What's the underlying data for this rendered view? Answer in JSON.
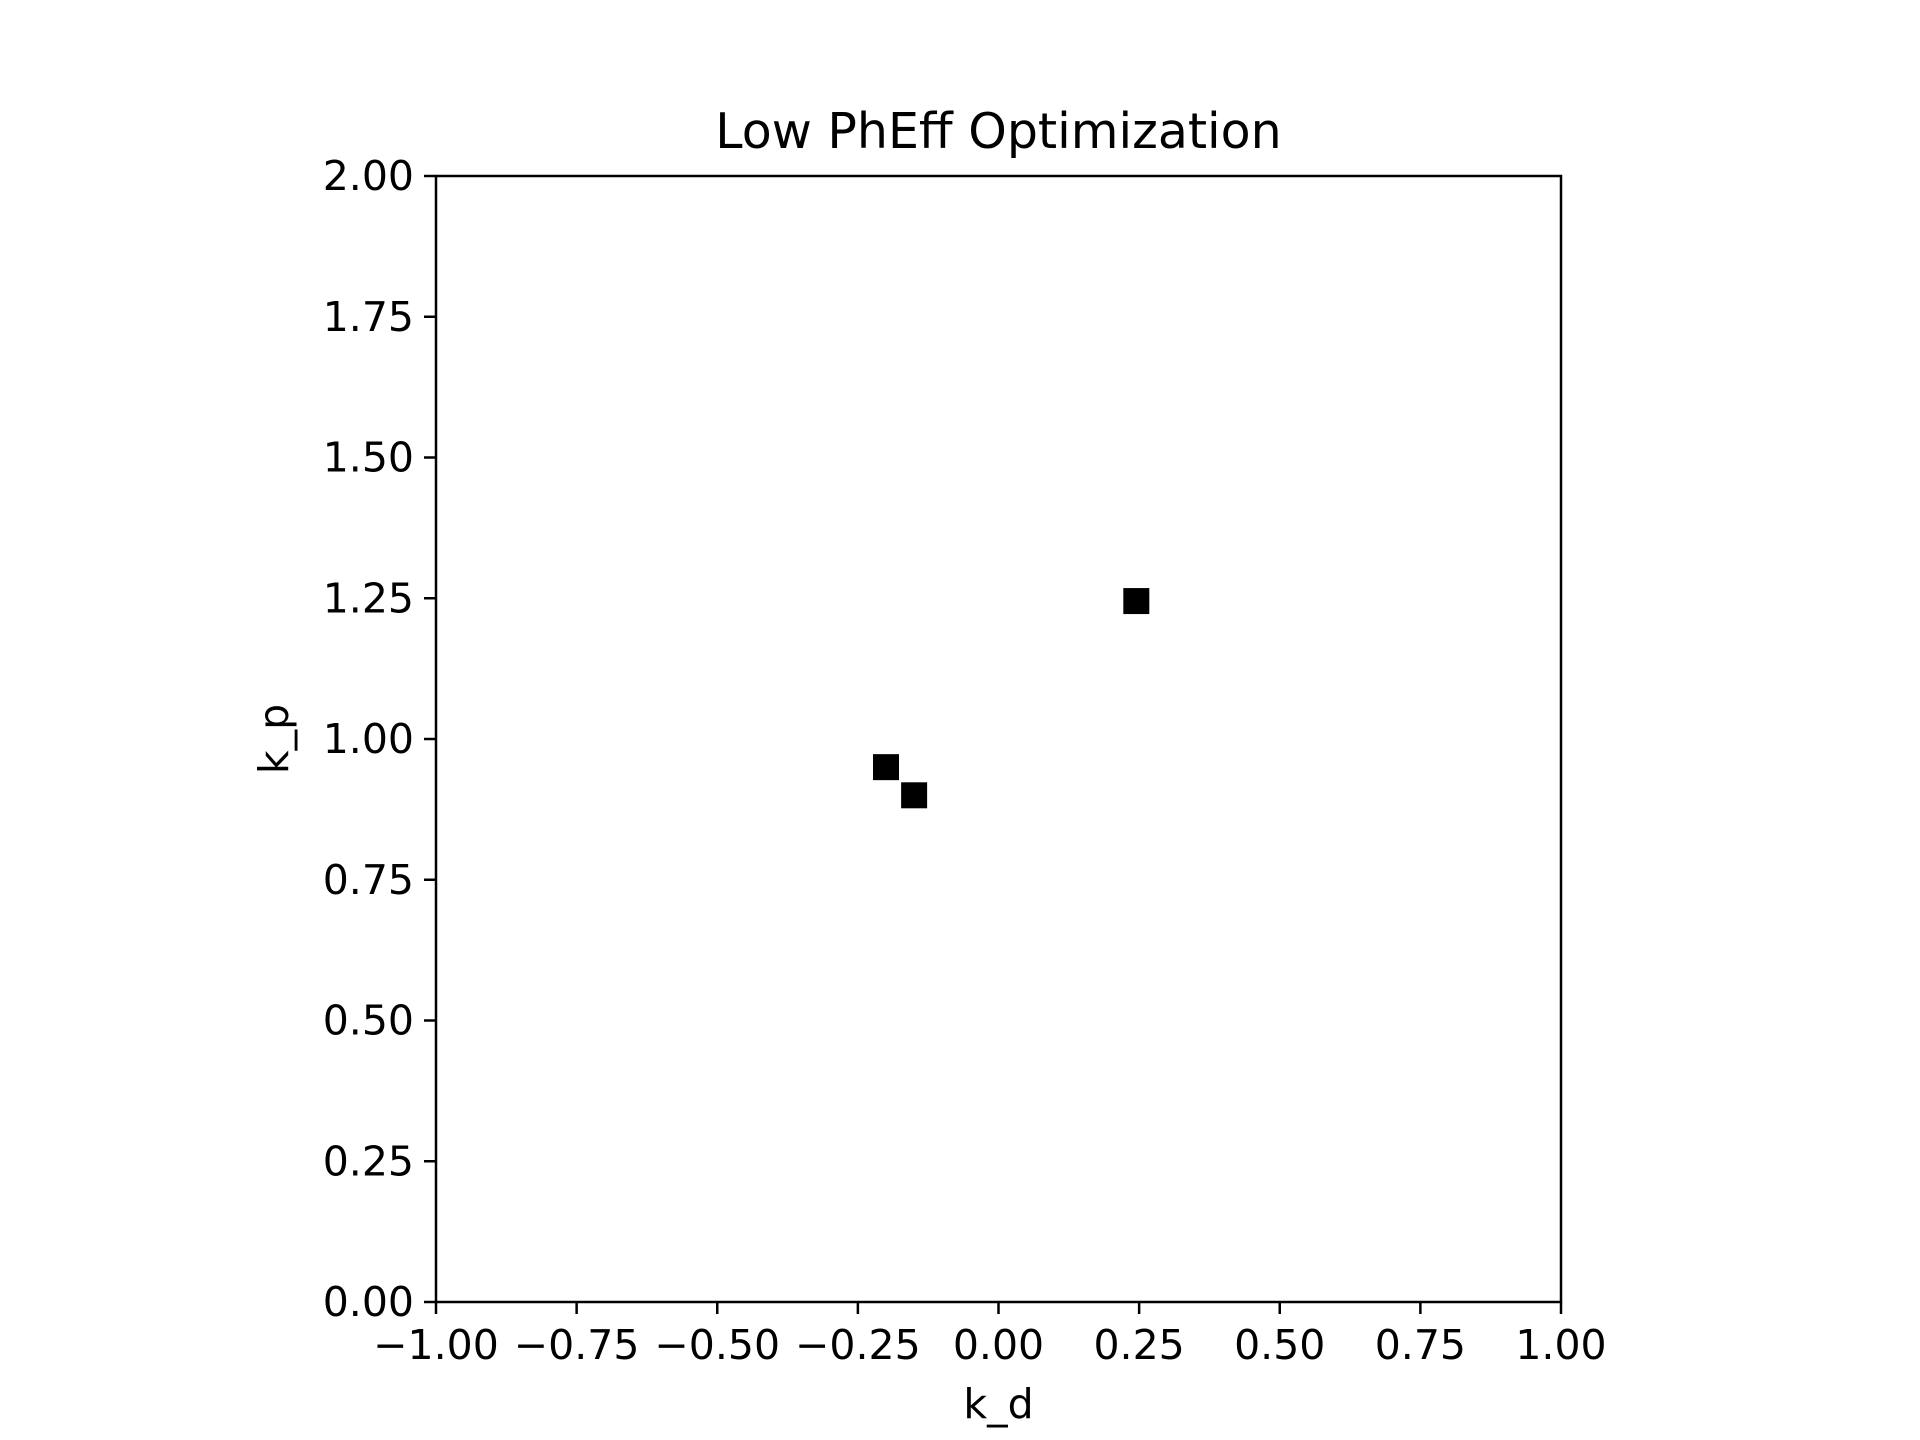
{
  "chart_data": {
    "type": "scatter",
    "title": "Low PhEff Optimization",
    "xlabel": "k_d",
    "ylabel": "k_p",
    "xlim": [
      -1.0,
      1.0
    ],
    "ylim": [
      0.0,
      2.0
    ],
    "xticks": [
      "−1.00",
      "−0.75",
      "−0.50",
      "−0.25",
      "0.00",
      "0.25",
      "0.50",
      "0.75",
      "1.00"
    ],
    "yticks": [
      "0.00",
      "0.25",
      "0.50",
      "0.75",
      "1.00",
      "1.25",
      "1.50",
      "1.75",
      "2.00"
    ],
    "xtick_values": [
      -1.0,
      -0.75,
      -0.5,
      -0.25,
      0.0,
      0.25,
      0.5,
      0.75,
      1.0
    ],
    "ytick_values": [
      0.0,
      0.25,
      0.5,
      0.75,
      1.0,
      1.25,
      1.5,
      1.75,
      2.0
    ],
    "grid": false,
    "marker": "square",
    "marker_color": "#000000",
    "points": [
      {
        "x": -0.2,
        "y": 0.95
      },
      {
        "x": -0.15,
        "y": 0.9
      },
      {
        "x": 0.245,
        "y": 1.245
      }
    ]
  }
}
